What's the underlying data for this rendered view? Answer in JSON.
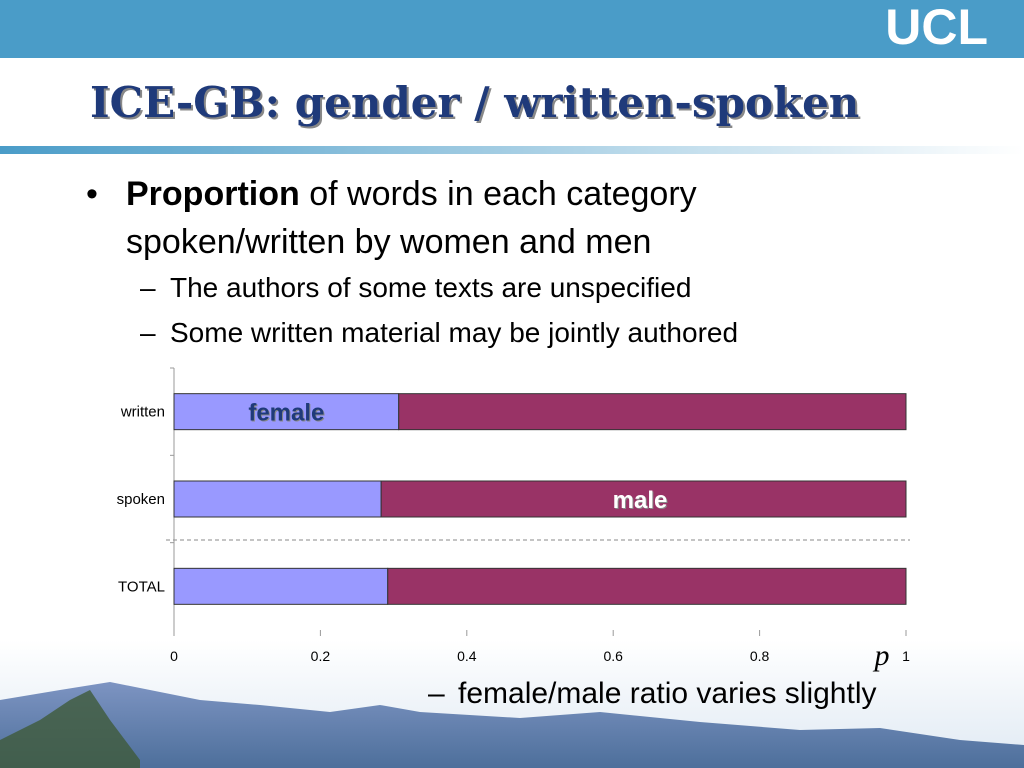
{
  "header": {
    "title": "ICE-GB: gender / written-spoken",
    "logo": "UCL"
  },
  "bullets": [
    {
      "bold": "Proportion",
      "text": "of words in each category spoken/written by women and men",
      "subs": [
        "The authors of some texts are unspecified",
        "Some written material may be jointly authored"
      ]
    }
  ],
  "footnote": "female/male ratio varies slightly",
  "chart_data": {
    "type": "stacked-barh",
    "xlabel": "p",
    "categories": [
      "written",
      "spoken",
      "TOTAL"
    ],
    "series": [
      {
        "name": "female",
        "color": "#9999ff",
        "values": [
          0.307,
          0.283,
          0.292
        ]
      },
      {
        "name": "male",
        "color": "#993366",
        "values": [
          0.693,
          0.717,
          0.708
        ]
      }
    ],
    "xlim": [
      0,
      1
    ],
    "xticks": [
      0,
      0.2,
      0.4,
      0.6,
      0.8,
      1
    ]
  }
}
